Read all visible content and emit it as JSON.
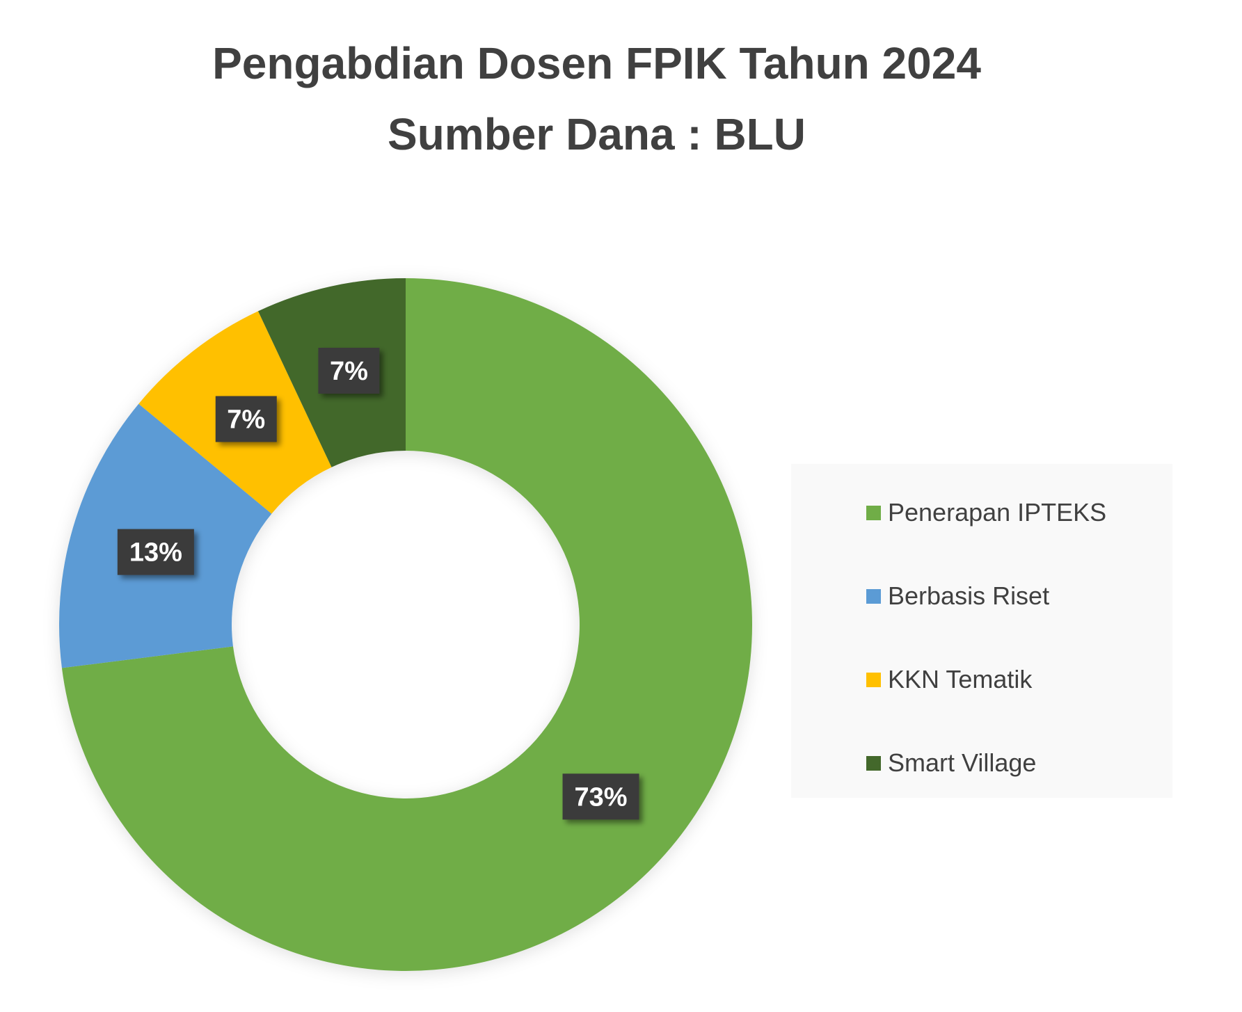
{
  "chart_data": {
    "type": "pie",
    "variant": "donut",
    "title": [
      "Pengabdian Dosen FPIK Tahun 2024",
      "Sumber Dana : BLU"
    ],
    "categories": [
      "Penerapan IPTEKS",
      "Berbasis Riset",
      "KKN Tematik",
      "Smart Village"
    ],
    "values": [
      73,
      13,
      7,
      7
    ],
    "data_labels": [
      "73%",
      "13%",
      "7%",
      "7%"
    ],
    "colors": [
      "#70AD47",
      "#5B9BD5",
      "#FFC000",
      "#43682B"
    ],
    "legend_position": "right",
    "start_angle_deg": 0,
    "direction": "clockwise"
  }
}
